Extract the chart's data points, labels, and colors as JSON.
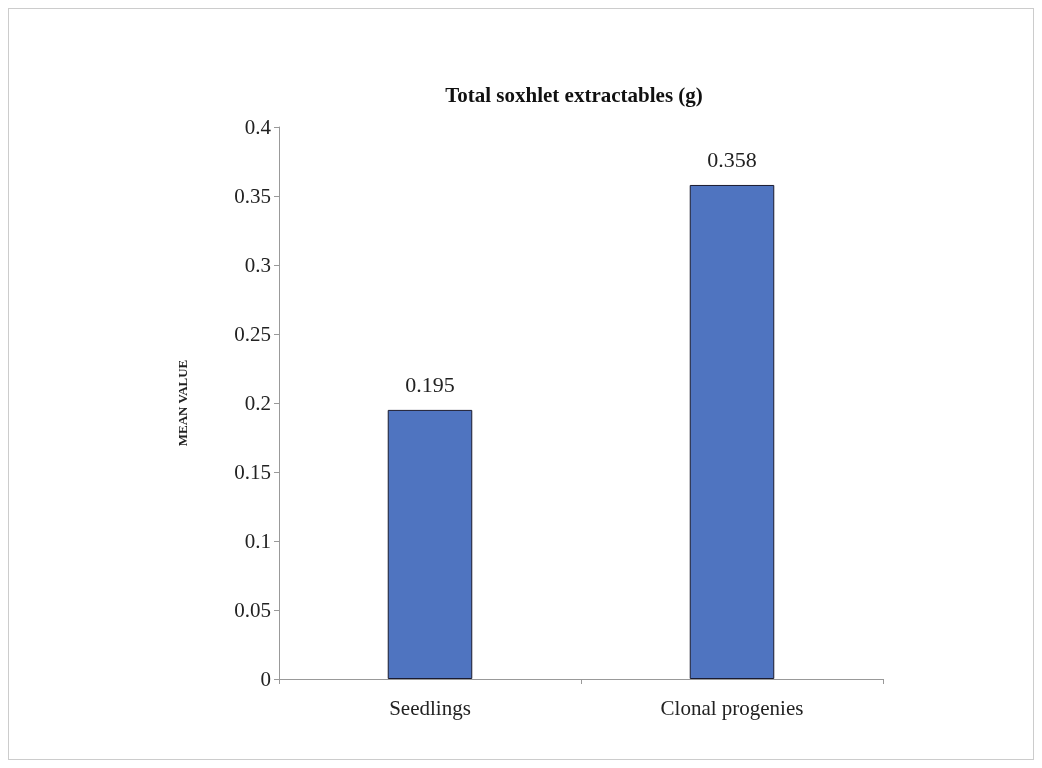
{
  "chart_data": {
    "type": "bar",
    "title": "Total soxhlet extractables (g)",
    "ylabel": "MEAN VALUE",
    "categories": [
      "Seedlings",
      "Clonal progenies"
    ],
    "values": [
      0.195,
      0.358
    ],
    "color": "#4f74c0",
    "ylim": [
      0,
      0.4
    ],
    "yticks": [
      0,
      0.05,
      0.1,
      0.15,
      0.2,
      0.25,
      0.3,
      0.35,
      0.4
    ],
    "data_labels": true,
    "grid": false
  }
}
